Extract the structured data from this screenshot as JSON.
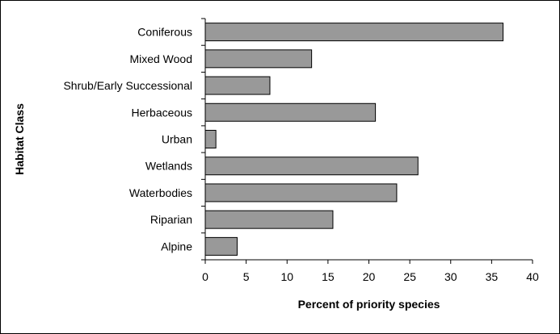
{
  "chart_data": {
    "type": "bar",
    "orientation": "horizontal",
    "title": "",
    "xlabel": "Percent of priority species",
    "ylabel": "Habitat Class",
    "xlim": [
      0,
      40
    ],
    "xticks": [
      0,
      5,
      10,
      15,
      20,
      25,
      30,
      35,
      40
    ],
    "grid": false,
    "legend": "none",
    "bar_color": "#999999",
    "bar_edge_color": "#000000",
    "categories": [
      "Coniferous",
      "Mixed Wood",
      "Shrub/Early Successional",
      "Herbaceous",
      "Urban",
      "Wetlands",
      "Waterbodies",
      "Riparian",
      "Alpine"
    ],
    "values": [
      36.4,
      13.0,
      7.9,
      20.8,
      1.3,
      26.0,
      23.4,
      15.6,
      3.9
    ]
  }
}
